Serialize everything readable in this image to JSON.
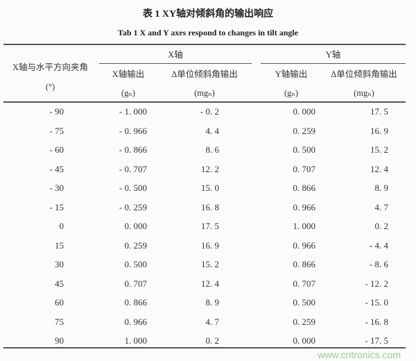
{
  "title": "表 1  XY轴对倾斜角的输出响应",
  "subtitle": "Tab 1   X and Y axes respond to changes in tilt angle",
  "headers": {
    "angle_label": "X轴与水平方向夹角",
    "angle_unit": "(°)",
    "x_group": "X轴",
    "y_group": "Y轴",
    "x_output": "X轴输出",
    "x_output_unit": "(gₙ)",
    "x_delta": "Δ单位倾斜角输出",
    "x_delta_unit": "(mgₙ)",
    "y_output": "Y轴输出",
    "y_output_unit": "(gₙ)",
    "y_delta": "Δ单位倾斜角输出",
    "y_delta_unit": "(mgₙ)"
  },
  "rows": [
    [
      "- 90",
      "- 1. 000",
      "- 0. 2",
      "0. 000",
      "17. 5"
    ],
    [
      "- 75",
      "- 0. 966",
      "4. 4",
      "0. 259",
      "16. 9"
    ],
    [
      "- 60",
      "- 0. 866",
      "8. 6",
      "0. 500",
      "15. 2"
    ],
    [
      "- 45",
      "- 0. 707",
      "12. 2",
      "0. 707",
      "12. 4"
    ],
    [
      "- 30",
      "- 0. 500",
      "15. 0",
      "0. 866",
      "8. 9"
    ],
    [
      "- 15",
      "- 0. 259",
      "16. 8",
      "0. 966",
      "4. 7"
    ],
    [
      "0",
      "0. 000",
      "17. 5",
      "1. 000",
      "0. 2"
    ],
    [
      "15",
      "0. 259",
      "16. 9",
      "0. 966",
      "- 4. 4"
    ],
    [
      "30",
      "0. 500",
      "15. 2",
      "0. 866",
      "- 8. 6"
    ],
    [
      "45",
      "0. 707",
      "12. 4",
      "0. 707",
      "- 12. 2"
    ],
    [
      "60",
      "0. 866",
      "8. 9",
      "0. 500",
      "- 15. 0"
    ],
    [
      "75",
      "0. 966",
      "4. 7",
      "0. 259",
      "- 16. 8"
    ],
    [
      "90",
      "1. 000",
      "0. 2",
      "0. 000",
      "- 17. 5"
    ]
  ],
  "watermark": "www.cntronics.com"
}
